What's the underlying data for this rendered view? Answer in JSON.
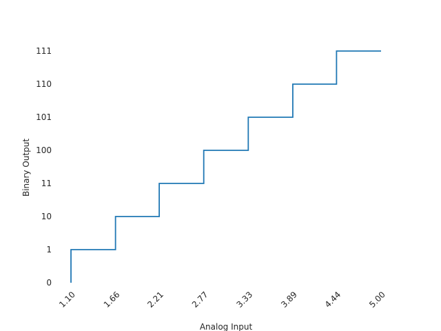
{
  "chart_data": {
    "type": "line",
    "style": "step",
    "title": "",
    "xlabel": "Analog Input",
    "ylabel": "Binary Output",
    "x": [
      1.1,
      1.66,
      2.21,
      2.77,
      3.33,
      3.89,
      4.44,
      5.0
    ],
    "x_tick_labels": [
      "1.10",
      "1.66",
      "2.21",
      "2.77",
      "3.33",
      "3.89",
      "4.44",
      "5.00"
    ],
    "y_levels": [
      0,
      1,
      2,
      3,
      4,
      5,
      6,
      7
    ],
    "y_tick_labels": [
      "0",
      "1",
      "10",
      "11",
      "100",
      "101",
      "110",
      "111"
    ],
    "series": [
      {
        "values": [
          0,
          1,
          2,
          3,
          4,
          5,
          6,
          7
        ]
      }
    ],
    "xlim": [
      1.1,
      5.0
    ],
    "ylim": [
      0,
      7
    ],
    "grid": false,
    "legend": false,
    "line_color": "#1f77b4"
  }
}
